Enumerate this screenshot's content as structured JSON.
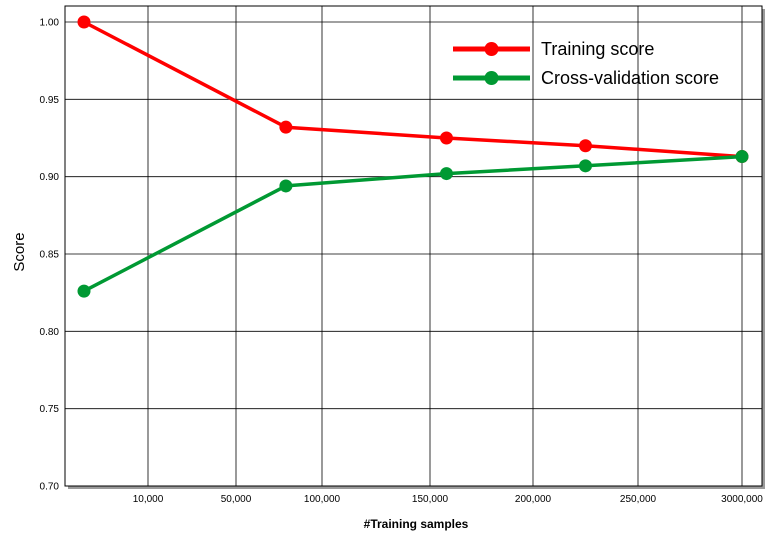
{
  "chart_data": {
    "type": "line",
    "title": "",
    "xlabel": "#Training samples",
    "ylabel": "Score",
    "ylim": [
      0.7,
      1.0
    ],
    "grid": true,
    "legend_position": "top-right",
    "x_tick_labels": [
      "10,000",
      "50,000",
      "100,000",
      "150,000",
      "200,000",
      "250,000",
      "3000,000"
    ],
    "y_tick_labels": [
      "0.70",
      "0.75",
      "0.80",
      "0.85",
      "0.90",
      "0.95",
      "1.00"
    ],
    "x": [
      6000,
      79000,
      158000,
      225000,
      300000
    ],
    "series": [
      {
        "name": "Training score",
        "color": "#ff0000",
        "values": [
          1.0,
          0.932,
          0.925,
          0.92,
          0.913
        ]
      },
      {
        "name": "Cross-validation score",
        "color": "#009933",
        "values": [
          0.826,
          0.894,
          0.902,
          0.907,
          0.913
        ]
      }
    ]
  }
}
